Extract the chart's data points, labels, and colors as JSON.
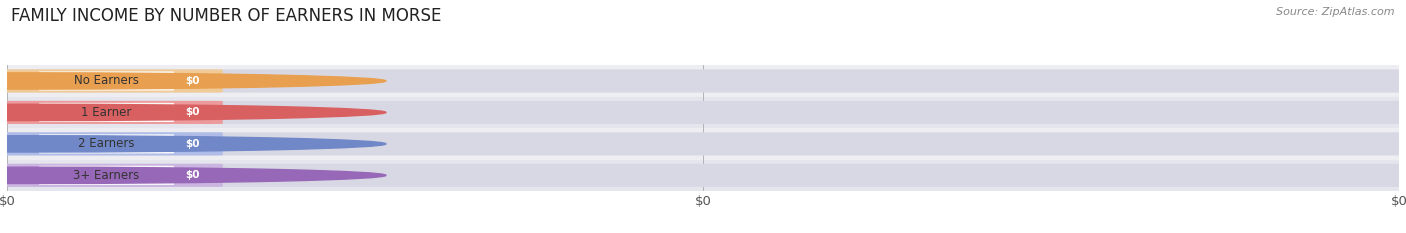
{
  "title": "FAMILY INCOME BY NUMBER OF EARNERS IN MORSE",
  "source": "Source: ZipAtlas.com",
  "categories": [
    "No Earners",
    "1 Earner",
    "2 Earners",
    "3+ Earners"
  ],
  "values": [
    0,
    0,
    0,
    0
  ],
  "bar_colors": [
    "#f5c98a",
    "#f09090",
    "#a8b8e8",
    "#c8aee0"
  ],
  "dot_colors": [
    "#e8a050",
    "#d86060",
    "#7088c8",
    "#9868b8"
  ],
  "row_bg_colors": [
    "#ededf2",
    "#e5e5ee",
    "#ededf2",
    "#e5e5ee"
  ],
  "pill_bg_color": "#d8d8e4",
  "value_label": "$0",
  "x_tick_labels": [
    "$0",
    "$0",
    "$0"
  ],
  "background_color": "#ffffff",
  "title_fontsize": 12,
  "tick_fontsize": 9.5,
  "source_fontsize": 8
}
